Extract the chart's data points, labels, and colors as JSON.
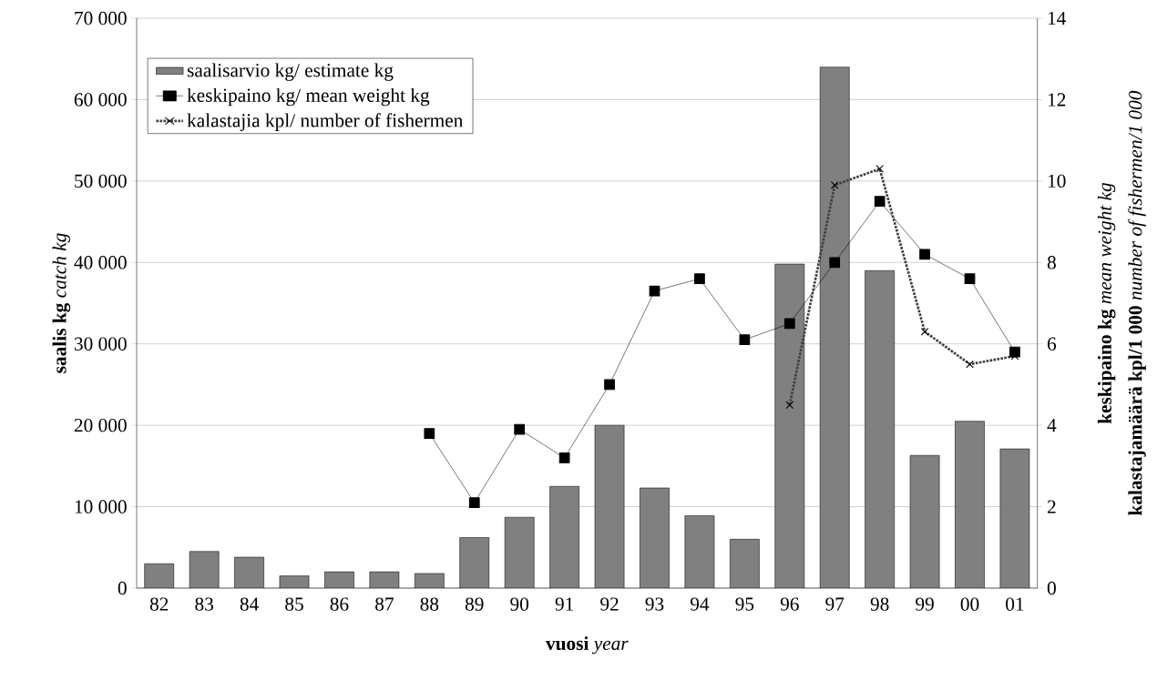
{
  "chart_data": {
    "type": "bar",
    "categories": [
      "82",
      "83",
      "84",
      "85",
      "86",
      "87",
      "88",
      "89",
      "90",
      "91",
      "92",
      "93",
      "94",
      "95",
      "96",
      "97",
      "98",
      "99",
      "00",
      "01"
    ],
    "series": [
      {
        "name": "saalisarvio kg/  estimate kg",
        "color": "#808080",
        "values": [
          3000,
          4500,
          3800,
          1500,
          2000,
          2000,
          1800,
          6200,
          8700,
          12500,
          20000,
          12300,
          8900,
          6000,
          39800,
          64000,
          39000,
          16300,
          20500,
          17100
        ]
      },
      {
        "name": "keskipaino kg/  mean weight kg",
        "type": "line",
        "axis": "y2",
        "color": "#000000",
        "marker": "square",
        "line_style": "solid",
        "values": [
          null,
          null,
          null,
          null,
          null,
          null,
          3.8,
          2.1,
          3.9,
          3.2,
          5.0,
          7.3,
          7.6,
          6.1,
          6.5,
          8.0,
          9.5,
          8.2,
          7.6,
          5.8
        ]
      },
      {
        "name": "kalastajia kpl/ number of fishermen",
        "type": "line",
        "axis": "y2",
        "color": "#404040",
        "marker": "cross",
        "line_style": "dotted",
        "values": [
          null,
          null,
          null,
          null,
          null,
          null,
          null,
          null,
          null,
          null,
          null,
          null,
          null,
          null,
          4.5,
          9.9,
          10.3,
          6.3,
          5.5,
          5.7
        ]
      }
    ],
    "ylabel": "**saalis kg**  *catch kg*",
    "y2label": "**keskipaino kg**  *mean weight kg*",
    "annotations": [
      "**kalastajamäärä kpl/1 000**  *number of fishermen/1 000*"
    ],
    "xlabel": "**vuosi**  *year*",
    "ylim": [
      0,
      70000
    ],
    "yticks": [
      {
        "value": 0,
        "label": "0"
      },
      {
        "value": 10000,
        "label": "10 000"
      },
      {
        "value": 20000,
        "label": "20 000"
      },
      {
        "value": 30000,
        "label": "30 000"
      },
      {
        "value": 40000,
        "label": "40 000"
      },
      {
        "value": 50000,
        "label": "50 000"
      },
      {
        "value": 60000,
        "label": "60 000"
      },
      {
        "value": 70000,
        "label": "70 000"
      }
    ],
    "y2lim": [
      0,
      14
    ],
    "y2ticks": [
      0,
      2,
      4,
      6,
      8,
      10,
      12,
      14
    ],
    "grid": "y",
    "legend": "top left"
  }
}
